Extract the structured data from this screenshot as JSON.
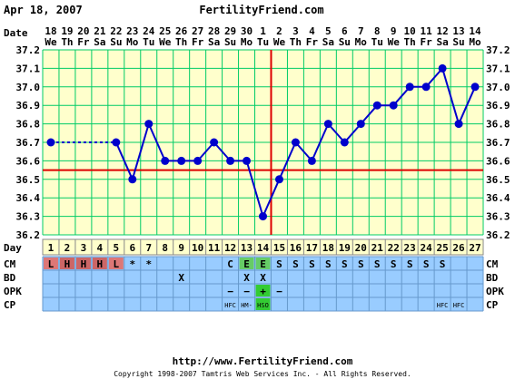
{
  "header": {
    "date": "Apr 18, 2007",
    "site": "FertilityFriend.com"
  },
  "footer": {
    "url": "http://www.FertilityFriend.com",
    "copyright": "Copyright 1998-2007 Tamtris Web Services Inc. - All Rights Reserved."
  },
  "colors": {
    "plot_bg": "#ffffcc",
    "grid": "#00cc66",
    "line": "#0000cc",
    "coverline": "#dd0000",
    "table_bg": "#99ccff",
    "day_row_bg": "#ffffcc",
    "cm_light": "#dd7777",
    "cm_heavy": "#cc6666",
    "cm_egg": "#66cc66",
    "opk_positive": "#33cc33"
  },
  "chart_data": {
    "type": "line",
    "row_labels": {
      "date": "Date",
      "day": "Day",
      "cm": "CM",
      "bd": "BD",
      "opk": "OPK",
      "cp": "CP"
    },
    "dates": [
      "18",
      "19",
      "20",
      "21",
      "22",
      "23",
      "24",
      "25",
      "26",
      "27",
      "28",
      "29",
      "30",
      "1",
      "2",
      "3",
      "4",
      "5",
      "6",
      "7",
      "8",
      "9",
      "10",
      "11",
      "12",
      "13",
      "14"
    ],
    "weekdays": [
      "We",
      "Th",
      "Fr",
      "Sa",
      "Su",
      "Mo",
      "Tu",
      "We",
      "Th",
      "Fr",
      "Sa",
      "Su",
      "Mo",
      "Tu",
      "We",
      "Th",
      "Fr",
      "Sa",
      "Su",
      "Mo",
      "Tu",
      "We",
      "Th",
      "Fr",
      "Sa",
      "Su",
      "Mo"
    ],
    "days": [
      "1",
      "2",
      "3",
      "4",
      "5",
      "6",
      "7",
      "8",
      "9",
      "10",
      "11",
      "12",
      "13",
      "14",
      "15",
      "16",
      "17",
      "18",
      "19",
      "20",
      "21",
      "22",
      "23",
      "24",
      "25",
      "26",
      "27"
    ],
    "temps": [
      36.7,
      null,
      null,
      null,
      36.7,
      36.5,
      36.8,
      36.6,
      36.6,
      36.6,
      36.7,
      36.6,
      36.6,
      36.3,
      36.5,
      36.7,
      36.6,
      36.8,
      36.7,
      36.8,
      36.9,
      36.9,
      37.0,
      37.0,
      37.1,
      36.8,
      37.0
    ],
    "dashed_gap": [
      1,
      5
    ],
    "y_ticks": [
      "37.2",
      "37.1",
      "37.0",
      "36.9",
      "36.8",
      "36.7",
      "36.6",
      "36.5",
      "36.4",
      "36.3",
      "36.2"
    ],
    "ylim": [
      36.2,
      37.2
    ],
    "coverline": 36.55,
    "ovulation_day": 15,
    "cm": [
      "L",
      "H",
      "H",
      "H",
      "L",
      "*",
      "*",
      "",
      "",
      "",
      "",
      "C",
      "E",
      "E",
      "S",
      "S",
      "S",
      "S",
      "S",
      "S",
      "S",
      "S",
      "S",
      "S",
      "S",
      "",
      ""
    ],
    "cm_colors": [
      "light",
      "heavy",
      "heavy",
      "heavy",
      "light",
      "",
      "",
      "",
      "",
      "",
      "",
      "",
      "egg",
      "egg",
      "",
      "",
      "",
      "",
      "",
      "",
      "",
      "",
      "",
      "",
      "",
      "",
      ""
    ],
    "bd": [
      "",
      "",
      "",
      "",
      "",
      "",
      "",
      "",
      "X",
      "",
      "",
      "",
      "X",
      "X",
      "",
      "",
      "",
      "",
      "",
      "",
      "",
      "",
      "",
      "",
      "",
      "",
      ""
    ],
    "opk": [
      "",
      "",
      "",
      "",
      "",
      "",
      "",
      "",
      "",
      "",
      "",
      "−",
      "−",
      "+",
      "−",
      "",
      "",
      "",
      "",
      "",
      "",
      "",
      "",
      "",
      "",
      "",
      ""
    ],
    "cp": [
      "",
      "",
      "",
      "",
      "",
      "",
      "",
      "",
      "",
      "",
      "",
      "HFC",
      "HM-",
      "HSO",
      "",
      "",
      "",
      "",
      "",
      "",
      "",
      "",
      "",
      "",
      "HFC",
      "HFC",
      ""
    ]
  }
}
